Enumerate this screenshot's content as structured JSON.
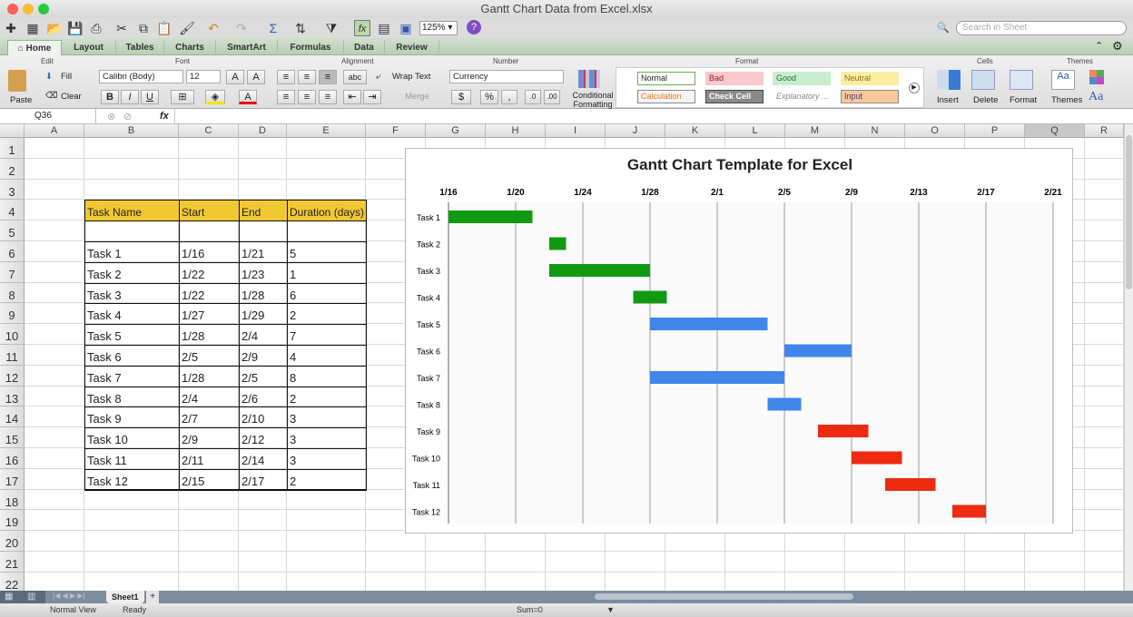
{
  "window": {
    "title": "Gantt Chart Data from Excel.xlsx"
  },
  "toolbar": {
    "zoom": "125%",
    "search_placeholder": "Search in Sheet"
  },
  "tabs": [
    "Home",
    "Layout",
    "Tables",
    "Charts",
    "SmartArt",
    "Formulas",
    "Data",
    "Review"
  ],
  "ribbon": {
    "groups": {
      "edit": "Edit",
      "font": "Font",
      "alignment": "Alignment",
      "number": "Number",
      "format": "Format",
      "cells": "Cells",
      "themes": "Themes"
    },
    "paste": "Paste",
    "fill": "Fill",
    "clear": "Clear",
    "font_name": "Calibri (Body)",
    "font_size": "12",
    "wrap_text": "Wrap Text",
    "merge": "Merge",
    "number_format": "Currency",
    "conditional_formatting": "Conditional Formatting",
    "styles": [
      {
        "label": "Normal",
        "bg": "#ffffff",
        "fg": "#222",
        "border": "#6ab04c"
      },
      {
        "label": "Bad",
        "bg": "#f8c8cc",
        "fg": "#9c1c28",
        "border": "#f8c8cc"
      },
      {
        "label": "Good",
        "bg": "#c8eecf",
        "fg": "#1e6b2a",
        "border": "#c8eecf"
      },
      {
        "label": "Neutral",
        "bg": "#fbeea0",
        "fg": "#8a6d10",
        "border": "#fbeea0"
      },
      {
        "label": "Calculation",
        "bg": "#f4f4f4",
        "fg": "#e07a10",
        "border": "#888"
      },
      {
        "label": "Check Cell",
        "bg": "#8a8a8a",
        "fg": "#ffffff",
        "border": "#444"
      },
      {
        "label": "Explanatory ...",
        "bg": "#ffffff",
        "fg": "#888",
        "border": "#fff"
      },
      {
        "label": "Input",
        "bg": "#f8c89a",
        "fg": "#3b3b7a",
        "border": "#888"
      }
    ],
    "insert": "Insert",
    "delete": "Delete",
    "format": "Format",
    "themes": "Themes"
  },
  "formula_bar": {
    "cell_ref": "Q36",
    "fx": "fx",
    "value": ""
  },
  "columns": [
    "A",
    "B",
    "C",
    "D",
    "E",
    "F",
    "G",
    "H",
    "I",
    "J",
    "K",
    "L",
    "M",
    "N",
    "O",
    "P",
    "Q",
    "R"
  ],
  "rows": [
    "1",
    "2",
    "3",
    "4",
    "5",
    "6",
    "7",
    "8",
    "9",
    "10",
    "11",
    "12",
    "13",
    "14",
    "15",
    "16",
    "17",
    "18",
    "19",
    "20",
    "21",
    "22"
  ],
  "table": {
    "headers": [
      "Task Name",
      "Start",
      "End",
      "Duration (days)"
    ],
    "rows": [
      [
        "Task 1",
        "1/16",
        "1/21",
        "5"
      ],
      [
        "Task 2",
        "1/22",
        "1/23",
        "1"
      ],
      [
        "Task 3",
        "1/22",
        "1/28",
        "6"
      ],
      [
        "Task 4",
        "1/27",
        "1/29",
        "2"
      ],
      [
        "Task 5",
        "1/28",
        "2/4",
        "7"
      ],
      [
        "Task 6",
        "2/5",
        "2/9",
        "4"
      ],
      [
        "Task 7",
        "1/28",
        "2/5",
        "8"
      ],
      [
        "Task 8",
        "2/4",
        "2/6",
        "2"
      ],
      [
        "Task 9",
        "2/7",
        "2/10",
        "3"
      ],
      [
        "Task 10",
        "2/9",
        "2/12",
        "3"
      ],
      [
        "Task 11",
        "2/11",
        "2/14",
        "3"
      ],
      [
        "Task 12",
        "2/15",
        "2/17",
        "2"
      ]
    ],
    "header_color": "#f2c832"
  },
  "chart_data": {
    "type": "bar",
    "subtype": "gantt",
    "title": "Gantt Chart Template for Excel",
    "x_ticks": [
      "1/16",
      "1/20",
      "1/24",
      "1/28",
      "2/1",
      "2/5",
      "2/9",
      "2/13",
      "2/17",
      "2/21"
    ],
    "xlim": [
      "1/16",
      "2/21"
    ],
    "grid": "vertical",
    "categories": [
      "Task 1",
      "Task 2",
      "Task 3",
      "Task 4",
      "Task 5",
      "Task 6",
      "Task 7",
      "Task 8",
      "Task 9",
      "Task 10",
      "Task 11",
      "Task 12"
    ],
    "start": [
      "1/16",
      "1/22",
      "1/22",
      "1/27",
      "1/28",
      "2/5",
      "1/28",
      "2/4",
      "2/7",
      "2/9",
      "2/11",
      "2/15"
    ],
    "duration": [
      5,
      1,
      6,
      2,
      7,
      4,
      8,
      2,
      3,
      3,
      3,
      2
    ],
    "colors": [
      "#119911",
      "#119911",
      "#119911",
      "#119911",
      "#3f86e8",
      "#3f86e8",
      "#3f86e8",
      "#3f86e8",
      "#ee2a10",
      "#ee2a10",
      "#ee2a10",
      "#ee2a10"
    ]
  },
  "sheet_tabs": [
    "Sheet1"
  ],
  "status": {
    "view": "Normal View",
    "state": "Ready",
    "sum": "Sum=0"
  }
}
